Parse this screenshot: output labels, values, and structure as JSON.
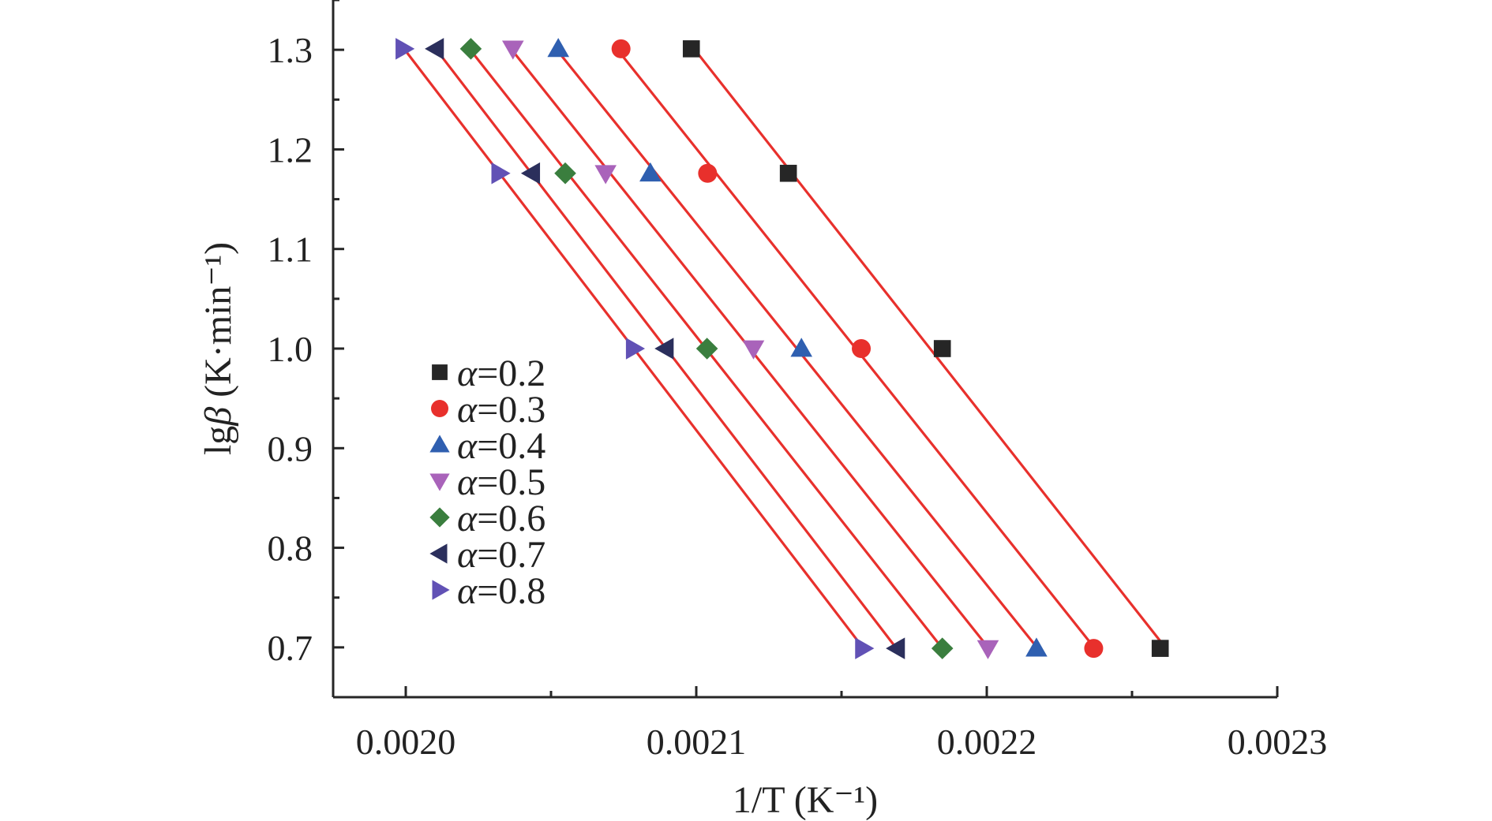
{
  "chart_data": {
    "type": "scatter",
    "xlabel": "1/T (K⁻¹)",
    "ylabel_prefix": "lg",
    "ylabel_symbol": "β",
    "ylabel_unit": " (K·min⁻¹)",
    "xlim": [
      0.001975,
      0.0023
    ],
    "ylim": [
      0.65,
      1.35
    ],
    "x_ticks": [
      0.002,
      0.0021,
      0.0022,
      0.0023
    ],
    "x_tick_labels": [
      "0.0020",
      "0.0021",
      "0.0022",
      "0.0023"
    ],
    "y_ticks": [
      0.7,
      0.8,
      0.9,
      1.0,
      1.1,
      1.2,
      1.3
    ],
    "y_tick_labels": [
      "0.7",
      "0.8",
      "0.9",
      "1.0",
      "1.1",
      "1.2",
      "1.3"
    ],
    "y_values": [
      1.301,
      1.176,
      1.0,
      0.699
    ],
    "legend_position": "lower-left",
    "fit_line_color": "#e8302c",
    "series": [
      {
        "name": "α=0.2",
        "symbol": "α",
        "value": "=0.2",
        "marker": "square",
        "color": "#262626",
        "x": [
          0.0020983,
          0.0021317,
          0.0021847,
          0.0022597
        ]
      },
      {
        "name": "α=0.3",
        "symbol": "α",
        "value": "=0.3",
        "marker": "circle",
        "color": "#e8302c",
        "x": [
          0.0020741,
          0.0021039,
          0.0021568,
          0.0022368
        ]
      },
      {
        "name": "α=0.4",
        "symbol": "α",
        "value": "=0.4",
        "marker": "triangle-up",
        "color": "#2f5fb0",
        "x": [
          0.0020525,
          0.0020842,
          0.0021362,
          0.0022171
        ]
      },
      {
        "name": "α=0.5",
        "symbol": "α",
        "value": "=0.5",
        "marker": "triangle-down",
        "color": "#a963ba",
        "x": [
          0.0020369,
          0.0020688,
          0.0021197,
          0.0022004
        ]
      },
      {
        "name": "α=0.6",
        "symbol": "α",
        "value": "=0.6",
        "marker": "diamond",
        "color": "#3a7e3e",
        "x": [
          0.0020224,
          0.0020549,
          0.0021037,
          0.0021847
        ]
      },
      {
        "name": "α=0.7",
        "symbol": "α",
        "value": "=0.7",
        "marker": "triangle-left",
        "color": "#2b2f5c",
        "x": [
          0.0020103,
          0.0020434,
          0.0020894,
          0.002169
        ]
      },
      {
        "name": "α=0.8",
        "symbol": "α",
        "value": "=0.8",
        "marker": "triangle-right",
        "color": "#6151b5",
        "x": [
          0.0019993,
          0.0020323,
          0.0020786,
          0.0021575
        ]
      }
    ]
  }
}
